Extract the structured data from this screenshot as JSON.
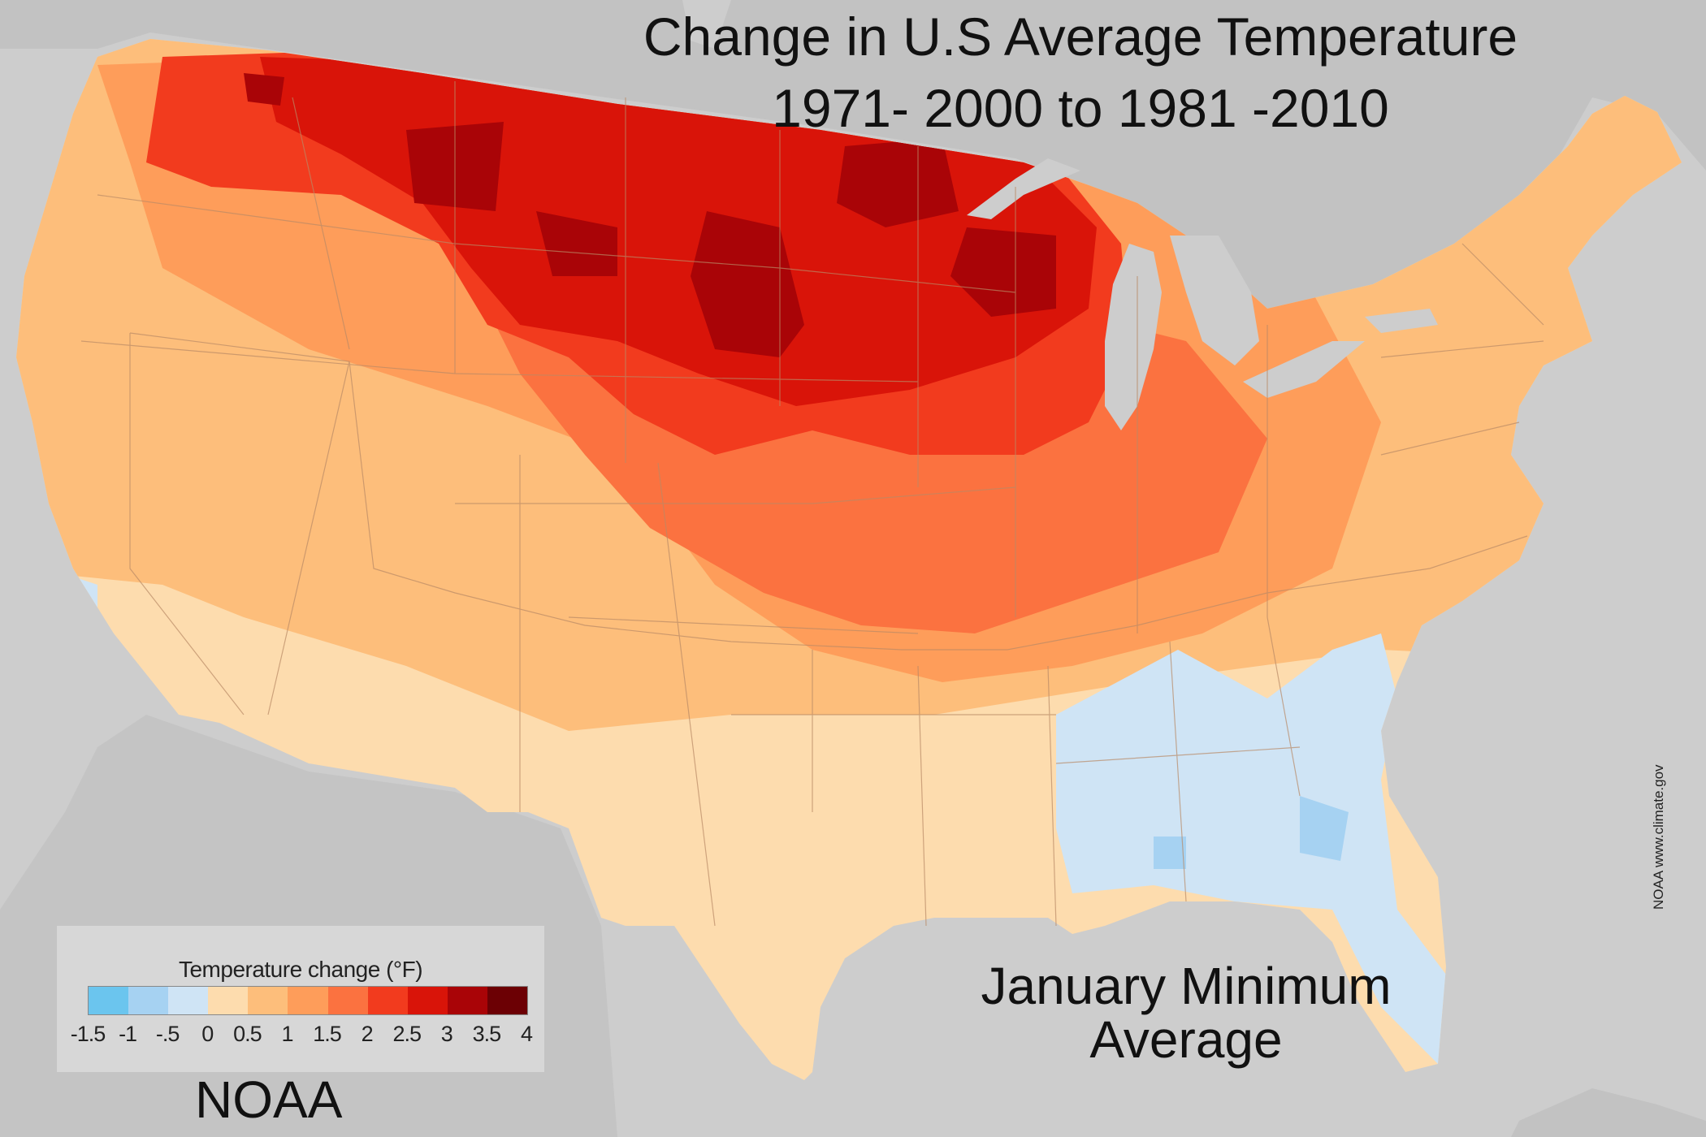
{
  "title": {
    "line1": "Change in U.S Average Temperature",
    "line2": "1971- 2000 to 1981 -2010"
  },
  "subtitle": {
    "line1": "January Minimum",
    "line2": "Average"
  },
  "brand": "NOAA",
  "credit": "NOAA www.climate.gov",
  "legend": {
    "title": "Temperature change (°F)",
    "tick_labels": [
      "-1.5",
      "-1",
      "-.5",
      "0",
      "0.5",
      "1",
      "1.5",
      "2",
      "2.5",
      "3",
      "3.5",
      "4"
    ],
    "colors": [
      "#6bc5ee",
      "#a6d2f2",
      "#cfe4f5",
      "#fddcae",
      "#fdbe7b",
      "#fe9d5a",
      "#fb7240",
      "#f23b1e",
      "#d91409",
      "#a90407",
      "#6c0004"
    ]
  },
  "colors": {
    "ocean": "#cdcdcd",
    "land_outside": "#c2c2c2",
    "lakes": "#cdcdcd",
    "state_borders": "#b98a66"
  }
}
